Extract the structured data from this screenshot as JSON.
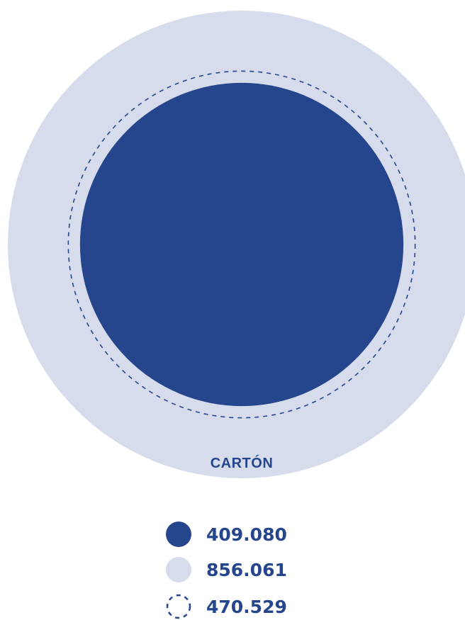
{
  "chart_data": {
    "type": "proportional-circles",
    "category": "CARTÓN",
    "series": [
      {
        "key": "inner",
        "value": 409.08,
        "label": "409.080",
        "style": "filled",
        "color": "#25468c"
      },
      {
        "key": "outer",
        "value": 856.061,
        "label": "856.061",
        "style": "filled",
        "color": "#d7dcec"
      },
      {
        "key": "dashed",
        "value": 470.529,
        "label": "470.529",
        "style": "dashed-outline",
        "color": "#25468c"
      }
    ],
    "legend_position": "bottom"
  },
  "colors": {
    "primary": "#25468c",
    "light": "#d7dcec",
    "text": "#25468c"
  }
}
